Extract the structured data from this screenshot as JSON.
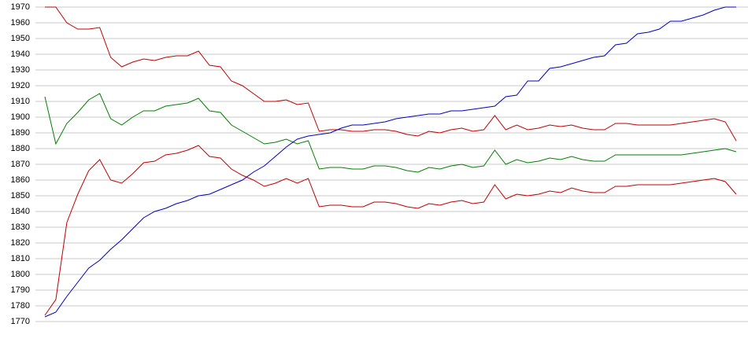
{
  "chart_data": {
    "type": "line",
    "categories": [
      null,
      null,
      null,
      null,
      null,
      null,
      null,
      null,
      null,
      null,
      null,
      null,
      null,
      null,
      null,
      null,
      null,
      null,
      null,
      null,
      null,
      null,
      null,
      null,
      null,
      null,
      null,
      null,
      null,
      null,
      null,
      null,
      null,
      null,
      null,
      null,
      null,
      null,
      null,
      null,
      null,
      null,
      null,
      null,
      null,
      null,
      null,
      null,
      null,
      null,
      null,
      null,
      null,
      null,
      null,
      null,
      null,
      null,
      null,
      null,
      null,
      null,
      null,
      null
    ],
    "series": [
      {
        "color": "#c00000",
        "values": [
          1970,
          1970,
          1960,
          1956,
          1956,
          1957,
          1938,
          1932,
          1935,
          1937,
          1936,
          1938,
          1939,
          1939,
          1942,
          1933,
          1932,
          1923,
          1920,
          1915,
          1910,
          1910,
          1911,
          1908,
          1909,
          1891,
          1892,
          1892,
          1891,
          1891,
          1892,
          1892,
          1891,
          1889,
          1888,
          1891,
          1890,
          1892,
          1893,
          1891,
          1892,
          1901,
          1892,
          1895,
          1892,
          1893,
          1895,
          1894,
          1895,
          1893,
          1892,
          1892,
          1896,
          1896,
          1895,
          1895,
          1895,
          1895,
          1896,
          1897,
          1898,
          1899,
          1897,
          1885
        ]
      },
      {
        "color": "#008000",
        "values": [
          1913,
          1883,
          1896,
          1903,
          1911,
          1915,
          1899,
          1895,
          1900,
          1904,
          1904,
          1907,
          1908,
          1909,
          1912,
          1904,
          1903,
          1895,
          1891,
          1887,
          1883,
          1884,
          1886,
          1883,
          1885,
          1867,
          1868,
          1868,
          1867,
          1867,
          1869,
          1869,
          1868,
          1866,
          1865,
          1868,
          1867,
          1869,
          1870,
          1868,
          1869,
          1879,
          1870,
          1873,
          1871,
          1872,
          1874,
          1873,
          1875,
          1873,
          1872,
          1872,
          1876,
          1876,
          1876,
          1876,
          1876,
          1876,
          1876,
          1877,
          1878,
          1879,
          1880,
          1878
        ]
      },
      {
        "color": "#c00000",
        "values": [
          1774,
          1784,
          1833,
          1851,
          1866,
          1873,
          1860,
          1858,
          1864,
          1871,
          1872,
          1876,
          1877,
          1879,
          1882,
          1875,
          1874,
          1867,
          1863,
          1860,
          1856,
          1858,
          1861,
          1858,
          1861,
          1843,
          1844,
          1844,
          1843,
          1843,
          1846,
          1846,
          1845,
          1843,
          1842,
          1845,
          1844,
          1846,
          1847,
          1845,
          1846,
          1857,
          1848,
          1851,
          1850,
          1851,
          1853,
          1852,
          1855,
          1853,
          1852,
          1852,
          1856,
          1856,
          1857,
          1857,
          1857,
          1857,
          1858,
          1859,
          1860,
          1861,
          1859,
          1851
        ]
      },
      {
        "color": "#0000c0",
        "values": [
          1773,
          1776,
          1786,
          1795,
          1804,
          1809,
          1816,
          1822,
          1829,
          1836,
          1840,
          1842,
          1845,
          1847,
          1850,
          1851,
          1854,
          1857,
          1860,
          1865,
          1869,
          1875,
          1881,
          1886,
          1888,
          1889,
          1890,
          1893,
          1895,
          1895,
          1896,
          1897,
          1899,
          1900,
          1901,
          1902,
          1902,
          1904,
          1904,
          1905,
          1906,
          1907,
          1913,
          1914,
          1923,
          1923,
          1931,
          1932,
          1934,
          1936,
          1938,
          1939,
          1946,
          1947,
          1953,
          1954,
          1956,
          1961,
          1961,
          1963,
          1965,
          1968,
          1970,
          1970
        ]
      }
    ],
    "ylim": [
      1770,
      1970
    ],
    "yticks": [
      1770,
      1780,
      1790,
      1800,
      1810,
      1820,
      1830,
      1840,
      1850,
      1860,
      1870,
      1880,
      1890,
      1900,
      1910,
      1920,
      1930,
      1940,
      1950,
      1960,
      1970
    ],
    "grid": true
  }
}
